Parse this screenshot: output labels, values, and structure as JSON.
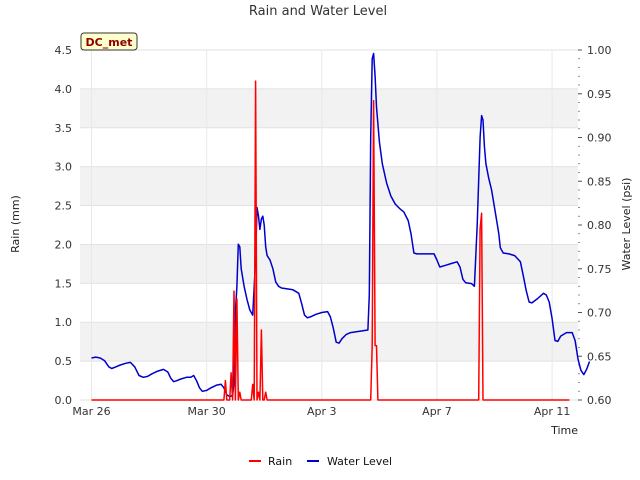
{
  "chart_data": {
    "type": "line",
    "title": "Rain and Water Level",
    "station_badge": "DC_met",
    "xlabel": "Time",
    "ylabel_left": "Rain (mm)",
    "ylabel_right": "Water Level (psi)",
    "x_domain_days": [
      -0.4,
      16.9
    ],
    "x_ticks": [
      {
        "day": 0,
        "label": "Mar 26"
      },
      {
        "day": 4,
        "label": "Mar 30"
      },
      {
        "day": 8,
        "label": "Apr 3"
      },
      {
        "day": 12,
        "label": "Apr 7"
      },
      {
        "day": 16,
        "label": "Apr 11"
      }
    ],
    "ylim_left": [
      0,
      4.5
    ],
    "yticks_left": [
      "0.0",
      "0.5",
      "1.0",
      "1.5",
      "2.0",
      "2.5",
      "3.0",
      "3.5",
      "4.0",
      "4.5"
    ],
    "ylim_right": [
      0.6,
      1.0
    ],
    "yticks_right": [
      "0.60",
      "0.65",
      "0.70",
      "0.75",
      "0.80",
      "0.85",
      "0.90",
      "0.95",
      "1.00"
    ],
    "grid": true,
    "legend": [
      "Rain",
      "Water Level"
    ],
    "colors": {
      "rain": "#ff0000",
      "water": "#0000cc",
      "band": "#f2f2f2",
      "badge_bg": "#ffffcc"
    },
    "series": [
      {
        "name": "Rain",
        "axis": "left",
        "points": [
          [
            0.0,
            0
          ],
          [
            4.6,
            0
          ],
          [
            4.65,
            0.25
          ],
          [
            4.7,
            0
          ],
          [
            4.8,
            0
          ],
          [
            4.85,
            0.35
          ],
          [
            4.9,
            0
          ],
          [
            4.95,
            1.4
          ],
          [
            5.0,
            0
          ],
          [
            5.05,
            1.3
          ],
          [
            5.1,
            0
          ],
          [
            5.15,
            0.1
          ],
          [
            5.2,
            0
          ],
          [
            5.55,
            0
          ],
          [
            5.6,
            0.2
          ],
          [
            5.65,
            0
          ],
          [
            5.7,
            4.1
          ],
          [
            5.75,
            0
          ],
          [
            5.8,
            0.1
          ],
          [
            5.85,
            0
          ],
          [
            5.9,
            0.9
          ],
          [
            5.95,
            0
          ],
          [
            6.0,
            0
          ],
          [
            6.05,
            0.1
          ],
          [
            6.1,
            0
          ],
          [
            9.7,
            0
          ],
          [
            9.75,
            0.7
          ],
          [
            9.8,
            3.85
          ],
          [
            9.85,
            0.7
          ],
          [
            9.9,
            0.7
          ],
          [
            9.95,
            0
          ],
          [
            13.45,
            0
          ],
          [
            13.5,
            2.2
          ],
          [
            13.55,
            2.4
          ],
          [
            13.6,
            0
          ],
          [
            16.6,
            0
          ]
        ]
      },
      {
        "name": "Water Level",
        "axis": "right",
        "points": [
          [
            0.0,
            0.648
          ],
          [
            0.15,
            0.649
          ],
          [
            0.3,
            0.648
          ],
          [
            0.45,
            0.645
          ],
          [
            0.6,
            0.638
          ],
          [
            0.7,
            0.636
          ],
          [
            0.85,
            0.638
          ],
          [
            1.0,
            0.64
          ],
          [
            1.2,
            0.642
          ],
          [
            1.35,
            0.643
          ],
          [
            1.5,
            0.638
          ],
          [
            1.65,
            0.628
          ],
          [
            1.8,
            0.626
          ],
          [
            1.95,
            0.627
          ],
          [
            2.1,
            0.63
          ],
          [
            2.3,
            0.633
          ],
          [
            2.5,
            0.635
          ],
          [
            2.65,
            0.632
          ],
          [
            2.75,
            0.625
          ],
          [
            2.85,
            0.621
          ],
          [
            2.95,
            0.622
          ],
          [
            3.1,
            0.624
          ],
          [
            3.3,
            0.626
          ],
          [
            3.45,
            0.626
          ],
          [
            3.55,
            0.628
          ],
          [
            3.65,
            0.622
          ],
          [
            3.75,
            0.614
          ],
          [
            3.85,
            0.61
          ],
          [
            4.0,
            0.611
          ],
          [
            4.15,
            0.614
          ],
          [
            4.35,
            0.617
          ],
          [
            4.5,
            0.618
          ],
          [
            4.6,
            0.614
          ],
          [
            4.7,
            0.606
          ],
          [
            4.8,
            0.604
          ],
          [
            4.9,
            0.605
          ],
          [
            4.95,
            0.62
          ],
          [
            5.0,
            0.7
          ],
          [
            5.05,
            0.73
          ],
          [
            5.1,
            0.778
          ],
          [
            5.15,
            0.775
          ],
          [
            5.2,
            0.75
          ],
          [
            5.3,
            0.73
          ],
          [
            5.4,
            0.715
          ],
          [
            5.5,
            0.703
          ],
          [
            5.6,
            0.697
          ],
          [
            5.7,
            0.76
          ],
          [
            5.75,
            0.82
          ],
          [
            5.8,
            0.81
          ],
          [
            5.85,
            0.795
          ],
          [
            5.9,
            0.807
          ],
          [
            5.95,
            0.81
          ],
          [
            6.0,
            0.8
          ],
          [
            6.05,
            0.775
          ],
          [
            6.1,
            0.765
          ],
          [
            6.2,
            0.76
          ],
          [
            6.3,
            0.75
          ],
          [
            6.4,
            0.735
          ],
          [
            6.5,
            0.73
          ],
          [
            6.6,
            0.728
          ],
          [
            6.8,
            0.727
          ],
          [
            7.0,
            0.726
          ],
          [
            7.2,
            0.722
          ],
          [
            7.3,
            0.71
          ],
          [
            7.4,
            0.697
          ],
          [
            7.5,
            0.694
          ],
          [
            7.6,
            0.695
          ],
          [
            7.8,
            0.698
          ],
          [
            8.0,
            0.7
          ],
          [
            8.2,
            0.701
          ],
          [
            8.3,
            0.695
          ],
          [
            8.4,
            0.682
          ],
          [
            8.5,
            0.666
          ],
          [
            8.6,
            0.665
          ],
          [
            8.7,
            0.67
          ],
          [
            8.85,
            0.675
          ],
          [
            9.0,
            0.677
          ],
          [
            9.6,
            0.68
          ],
          [
            9.65,
            0.72
          ],
          [
            9.7,
            0.9
          ],
          [
            9.75,
            0.99
          ],
          [
            9.8,
            0.996
          ],
          [
            9.85,
            0.97
          ],
          [
            9.9,
            0.935
          ],
          [
            10.0,
            0.895
          ],
          [
            10.1,
            0.87
          ],
          [
            10.25,
            0.848
          ],
          [
            10.4,
            0.833
          ],
          [
            10.55,
            0.824
          ],
          [
            10.7,
            0.819
          ],
          [
            10.85,
            0.815
          ],
          [
            11.0,
            0.805
          ],
          [
            11.1,
            0.79
          ],
          [
            11.2,
            0.768
          ],
          [
            11.3,
            0.767
          ],
          [
            11.6,
            0.767
          ],
          [
            11.9,
            0.767
          ],
          [
            12.0,
            0.76
          ],
          [
            12.1,
            0.752
          ],
          [
            12.3,
            0.754
          ],
          [
            12.5,
            0.756
          ],
          [
            12.7,
            0.758
          ],
          [
            12.8,
            0.752
          ],
          [
            12.9,
            0.738
          ],
          [
            13.0,
            0.734
          ],
          [
            13.2,
            0.733
          ],
          [
            13.3,
            0.73
          ],
          [
            13.4,
            0.8
          ],
          [
            13.5,
            0.9
          ],
          [
            13.55,
            0.925
          ],
          [
            13.6,
            0.92
          ],
          [
            13.65,
            0.89
          ],
          [
            13.7,
            0.87
          ],
          [
            13.8,
            0.853
          ],
          [
            13.9,
            0.84
          ],
          [
            14.0,
            0.82
          ],
          [
            14.1,
            0.8
          ],
          [
            14.15,
            0.79
          ],
          [
            14.2,
            0.774
          ],
          [
            14.3,
            0.768
          ],
          [
            14.5,
            0.767
          ],
          [
            14.7,
            0.765
          ],
          [
            14.9,
            0.758
          ],
          [
            15.0,
            0.742
          ],
          [
            15.1,
            0.725
          ],
          [
            15.2,
            0.712
          ],
          [
            15.3,
            0.711
          ],
          [
            15.5,
            0.716
          ],
          [
            15.7,
            0.722
          ],
          [
            15.8,
            0.72
          ],
          [
            15.9,
            0.712
          ],
          [
            16.0,
            0.693
          ],
          [
            16.1,
            0.668
          ],
          [
            16.2,
            0.667
          ],
          [
            16.3,
            0.673
          ],
          [
            16.5,
            0.677
          ],
          [
            16.7,
            0.677
          ],
          [
            16.8,
            0.668
          ],
          [
            16.9,
            0.647
          ],
          [
            17.0,
            0.634
          ],
          [
            17.1,
            0.629
          ],
          [
            17.2,
            0.635
          ],
          [
            17.3,
            0.644
          ]
        ]
      }
    ]
  }
}
